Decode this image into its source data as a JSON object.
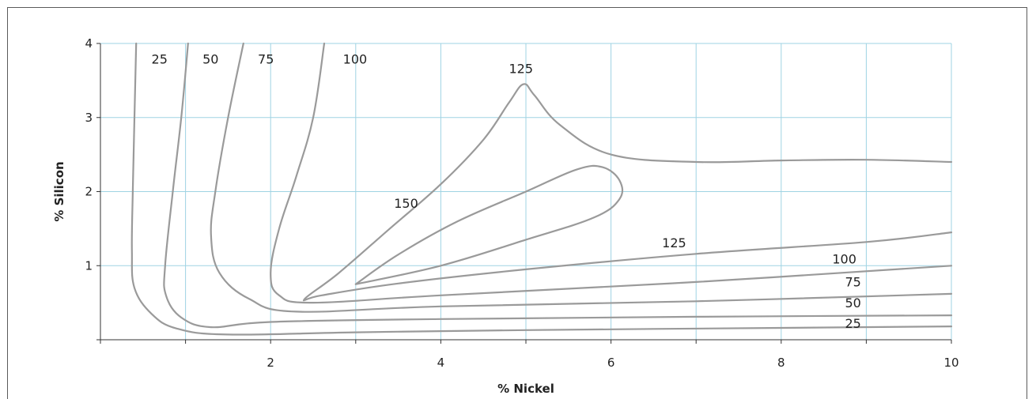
{
  "chart_data": {
    "type": "line",
    "title": "",
    "xlabel": "% Nickel",
    "ylabel": "% Silicon",
    "xlim": [
      0,
      10
    ],
    "ylim": [
      0,
      4
    ],
    "xticks": [
      0,
      1,
      2,
      3,
      4,
      5,
      6,
      7,
      8,
      9,
      10
    ],
    "xtick_labels": [
      "2",
      "4",
      "6",
      "8",
      "10"
    ],
    "xtick_label_values": [
      2,
      4,
      6,
      8,
      10
    ],
    "yticks": [
      0,
      1,
      2,
      3,
      4
    ],
    "ytick_labels": [
      "1",
      "2",
      "3",
      "4"
    ],
    "ytick_label_values": [
      1,
      2,
      3,
      4
    ],
    "grid": true,
    "colors": {
      "grid": "#9fd3e3",
      "contour": "#9a9a9a",
      "axis": "#333333"
    },
    "series": [
      {
        "name": "25",
        "points": [
          [
            0.42,
            4.0
          ],
          [
            0.4,
            3.0
          ],
          [
            0.38,
            2.0
          ],
          [
            0.37,
            1.2
          ],
          [
            0.4,
            0.7
          ],
          [
            0.6,
            0.35
          ],
          [
            0.9,
            0.15
          ],
          [
            1.5,
            0.07
          ],
          [
            3,
            0.1
          ],
          [
            5,
            0.13
          ],
          [
            8,
            0.16
          ],
          [
            10,
            0.18
          ]
        ]
      },
      {
        "name": "50",
        "points": [
          [
            1.03,
            4.0
          ],
          [
            0.95,
            3.0
          ],
          [
            0.85,
            2.0
          ],
          [
            0.76,
            1.0
          ],
          [
            0.77,
            0.6
          ],
          [
            0.95,
            0.3
          ],
          [
            1.3,
            0.17
          ],
          [
            2,
            0.24
          ],
          [
            4,
            0.28
          ],
          [
            7,
            0.31
          ],
          [
            10,
            0.33
          ]
        ]
      },
      {
        "name": "75",
        "points": [
          [
            1.68,
            4.0
          ],
          [
            1.5,
            3.0
          ],
          [
            1.35,
            2.0
          ],
          [
            1.3,
            1.4
          ],
          [
            1.4,
            0.9
          ],
          [
            1.75,
            0.55
          ],
          [
            2.3,
            0.38
          ],
          [
            4,
            0.45
          ],
          [
            7,
            0.52
          ],
          [
            10,
            0.62
          ]
        ]
      },
      {
        "name": "100",
        "points": [
          [
            2.63,
            4.0
          ],
          [
            2.5,
            3.0
          ],
          [
            2.3,
            2.2
          ],
          [
            2.1,
            1.5
          ],
          [
            2.0,
            0.9
          ],
          [
            2.1,
            0.6
          ],
          [
            2.5,
            0.5
          ],
          [
            4,
            0.6
          ],
          [
            7,
            0.78
          ],
          [
            10,
            1.0
          ]
        ]
      },
      {
        "name": "125",
        "points": [
          [
            10,
            1.45
          ],
          [
            9,
            1.32
          ],
          [
            7,
            1.16
          ],
          [
            5,
            0.95
          ],
          [
            3.5,
            0.76
          ],
          [
            2.6,
            0.6
          ],
          [
            2.4,
            0.55
          ],
          [
            2.8,
            0.9
          ],
          [
            3.4,
            1.5
          ],
          [
            4,
            2.1
          ],
          [
            4.5,
            2.7
          ],
          [
            4.8,
            3.2
          ],
          [
            4.97,
            3.45
          ],
          [
            5.1,
            3.3
          ],
          [
            5.4,
            2.9
          ],
          [
            6,
            2.5
          ],
          [
            7,
            2.4
          ],
          [
            8,
            2.42
          ],
          [
            9,
            2.43
          ],
          [
            10,
            2.4
          ]
        ]
      },
      {
        "name": "150",
        "points": [
          [
            3.0,
            0.75
          ],
          [
            4,
            1.0
          ],
          [
            5,
            1.35
          ],
          [
            5.8,
            1.65
          ],
          [
            6.1,
            1.9
          ],
          [
            6.1,
            2.15
          ],
          [
            5.9,
            2.33
          ],
          [
            5.6,
            2.3
          ],
          [
            5.0,
            2.0
          ],
          [
            4.2,
            1.6
          ],
          [
            3.5,
            1.15
          ],
          [
            3.0,
            0.75
          ]
        ]
      }
    ],
    "annotations": [
      {
        "text": "25",
        "x": 0.6,
        "y": 3.73
      },
      {
        "text": "50",
        "x": 1.2,
        "y": 3.73
      },
      {
        "text": "75",
        "x": 1.85,
        "y": 3.73
      },
      {
        "text": "100",
        "x": 2.85,
        "y": 3.73
      },
      {
        "text": "125",
        "x": 4.8,
        "y": 3.6
      },
      {
        "text": "150",
        "x": 3.45,
        "y": 1.78
      },
      {
        "text": "125",
        "x": 6.6,
        "y": 1.25
      },
      {
        "text": "100",
        "x": 8.6,
        "y": 1.03
      },
      {
        "text": "75",
        "x": 8.75,
        "y": 0.72
      },
      {
        "text": "50",
        "x": 8.75,
        "y": 0.44
      },
      {
        "text": "25",
        "x": 8.75,
        "y": 0.16
      }
    ]
  }
}
